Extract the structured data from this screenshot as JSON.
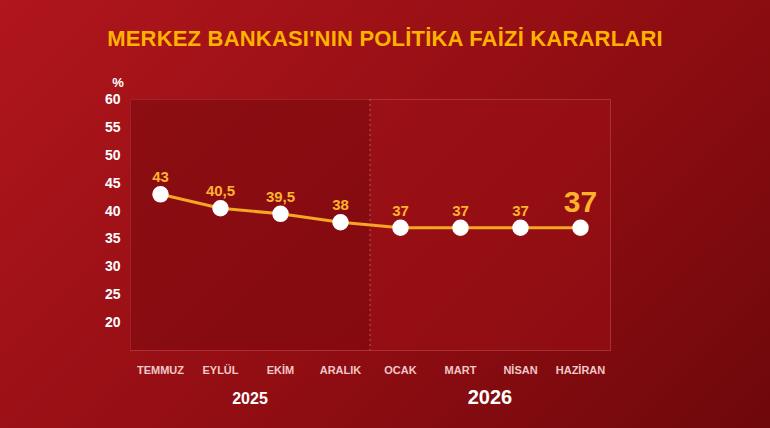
{
  "chart_data": {
    "type": "line",
    "title": "MERKEZ BANKASI'NIN POLİTİKA FAİZİ KARARLARI",
    "ylabel": "%",
    "categories": [
      "TEMMUZ",
      "EYLÜL",
      "EKİM",
      "ARALIK",
      "OCAK",
      "MART",
      "NİSAN",
      "HAZİRAN"
    ],
    "values": [
      43,
      40.5,
      39.5,
      38,
      37,
      37,
      37,
      37
    ],
    "value_labels": [
      "43",
      "40,5",
      "39,5",
      "38",
      "37",
      "37",
      "37",
      "37"
    ],
    "groups": [
      {
        "name": "2025",
        "categories": [
          "TEMMUZ",
          "EYLÜL",
          "EKİM",
          "ARALIK"
        ]
      },
      {
        "name": "2026",
        "categories": [
          "OCAK",
          "MART",
          "NİSAN",
          "HAZİRAN"
        ]
      }
    ],
    "color": "#f5a623",
    "marker": "circle",
    "data_labels": true,
    "grid": false,
    "ylim": [
      15,
      60
    ],
    "yticks": [
      20,
      25,
      30,
      35,
      40,
      45,
      50,
      55,
      60
    ]
  }
}
